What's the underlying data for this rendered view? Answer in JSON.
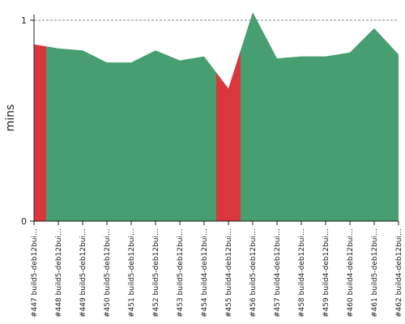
{
  "chart_data": {
    "type": "area",
    "title": "",
    "xlabel": "",
    "ylabel": "mins",
    "ylim": [
      0,
      1
    ],
    "yticks": [
      0,
      1
    ],
    "threshold_line": 1,
    "grid": false,
    "categories": [
      "#447 build5-deb12bui…",
      "#448 build5-deb12bui…",
      "#449 build5-deb12bui…",
      "#450 build5-deb12bui…",
      "#451 build5-deb12bui…",
      "#452 build5-deb12bui…",
      "#453 build5-deb12bui…",
      "#454 build4-deb12bui…",
      "#455 build4-deb12bui…",
      "#456 build5-deb12bui…",
      "#457 build4-deb12bui…",
      "#458 build4-deb12bui…",
      "#459 build4-deb12bui…",
      "#460 build4-deb12bui…",
      "#461 build5-deb12bui…",
      "#462 build4-deb12bui…"
    ],
    "values": [
      0.88,
      0.86,
      0.85,
      0.79,
      0.79,
      0.85,
      0.8,
      0.82,
      0.66,
      1.04,
      0.81,
      0.82,
      0.82,
      0.84,
      0.96,
      0.83
    ],
    "status": [
      "failed",
      "success",
      "success",
      "success",
      "success",
      "success",
      "success",
      "success",
      "failed",
      "success",
      "success",
      "success",
      "success",
      "success",
      "success",
      "success"
    ],
    "colors": {
      "success": "#479e70",
      "failed": "#d9373b",
      "threshold": "#888888",
      "axis": "#222222"
    }
  }
}
